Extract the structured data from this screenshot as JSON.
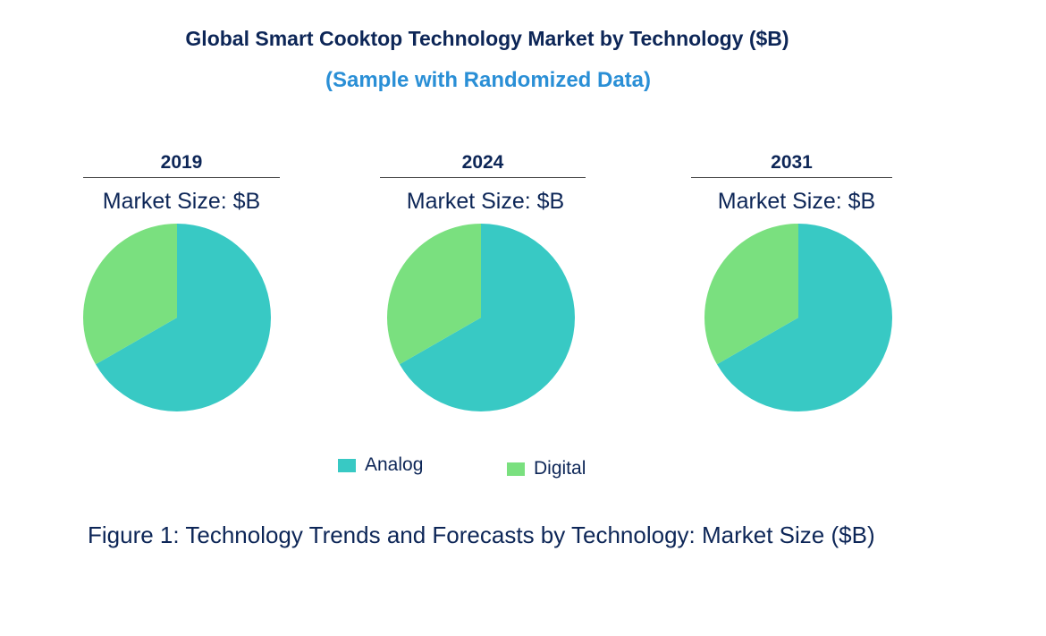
{
  "chart_data": {
    "type": "pie",
    "title": "Global Smart Cooktop Technology Market by Technology ($B)",
    "subtitle": "(Sample with Randomized Data)",
    "legend_position": "bottom",
    "series_names": [
      "Analog",
      "Digital"
    ],
    "colors": {
      "Analog": "#38c9c4",
      "Digital": "#7ae07f"
    },
    "pies": [
      {
        "label": "2019",
        "subtitle": "Market Size: $B",
        "values": [
          {
            "name": "Analog",
            "value": 66.7
          },
          {
            "name": "Digital",
            "value": 33.3
          }
        ]
      },
      {
        "label": "2024",
        "subtitle": "Market Size: $B",
        "values": [
          {
            "name": "Analog",
            "value": 66.7
          },
          {
            "name": "Digital",
            "value": 33.3
          }
        ]
      },
      {
        "label": "2031",
        "subtitle": "Market Size: $B",
        "values": [
          {
            "name": "Analog",
            "value": 66.7
          },
          {
            "name": "Digital",
            "value": 33.3
          }
        ]
      }
    ],
    "caption": "Figure 1: Technology Trends and Forecasts by Technology: Market Size ($B)"
  }
}
